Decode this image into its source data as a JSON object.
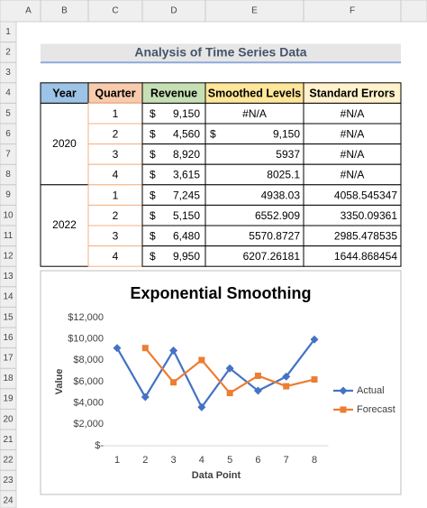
{
  "sheet": {
    "columns": [
      "A",
      "B",
      "C",
      "D",
      "E",
      "F"
    ],
    "rows": [
      1,
      2,
      3,
      4,
      5,
      6,
      7,
      8,
      9,
      10,
      11,
      12,
      13,
      14,
      15,
      16,
      17,
      18,
      19,
      20,
      21,
      22,
      23,
      24
    ],
    "title": "Analysis of Time Series Data",
    "table": {
      "header": [
        "Year",
        "Quarter",
        "Revenue",
        "Smoothed Levels",
        "Standard Errors"
      ],
      "currency": "$",
      "groups": [
        {
          "year": "2020",
          "rows": [
            [
              "1",
              "9,150",
              "#N/A",
              "#N/A"
            ],
            [
              "2",
              "4,560",
              [
                "$",
                "9,150"
              ],
              "#N/A"
            ],
            [
              "3",
              "8,920",
              "5937",
              "#N/A"
            ],
            [
              "4",
              "3,615",
              "8025.1",
              "#N/A"
            ]
          ]
        },
        {
          "year": "2022",
          "rows": [
            [
              "1",
              "7,245",
              "4938.03",
              "4058.545347"
            ],
            [
              "2",
              "5,150",
              "6552.909",
              "3350.09361"
            ],
            [
              "3",
              "6,480",
              "5570.8727",
              "2985.478535"
            ],
            [
              "4",
              "9,950",
              "6207.26181",
              "1644.868454"
            ]
          ]
        }
      ]
    }
  },
  "chart_data": {
    "type": "line",
    "title": "Exponential Smoothing",
    "x_label": "Data Point",
    "y_label": "Value",
    "categories": [
      "1",
      "2",
      "3",
      "4",
      "5",
      "6",
      "7",
      "8"
    ],
    "series": [
      {
        "name": "Actual",
        "color": "#4472c4",
        "marker": "diamond",
        "values": [
          9150,
          4560,
          8920,
          3615,
          7245,
          5150,
          6480,
          9950
        ]
      },
      {
        "name": "Forecast",
        "color": "#ed7d31",
        "marker": "square",
        "values": [
          null,
          9150,
          5937,
          8025.1,
          4938.03,
          6552.909,
          5570.8727,
          6207.26181
        ]
      }
    ],
    "ylim": [
      0,
      12000
    ],
    "yticks": [
      {
        "value": 0,
        "label": "$-"
      },
      {
        "value": 2000,
        "label": "$2,000"
      },
      {
        "value": 4000,
        "label": "$4,000"
      },
      {
        "value": 6000,
        "label": "$6,000"
      },
      {
        "value": 8000,
        "label": "$8,000"
      },
      {
        "value": 10000,
        "label": "$10,000"
      },
      {
        "value": 12000,
        "label": "$12,000"
      }
    ],
    "grid": false,
    "legend": "right"
  }
}
